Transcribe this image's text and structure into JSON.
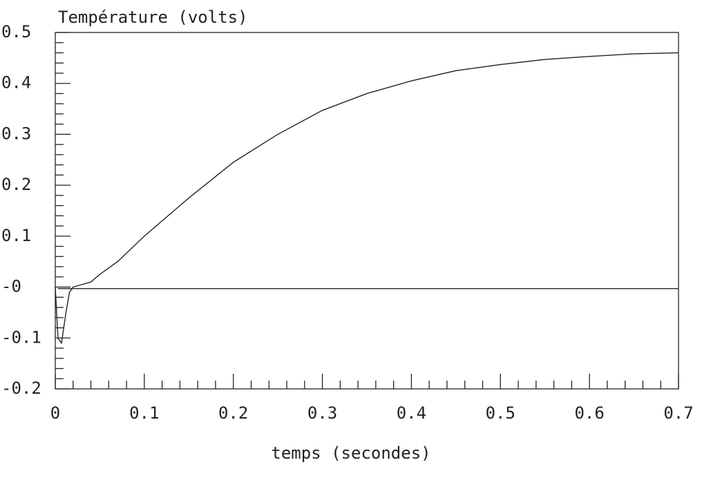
{
  "chart_data": {
    "type": "line",
    "title": "Température (volts)",
    "x_label": "temps (secondes)",
    "x": [
      0,
      0.003,
      0.007,
      0.012,
      0.016,
      0.02,
      0.03,
      0.04,
      0.05,
      0.07,
      0.1,
      0.15,
      0.2,
      0.25,
      0.3,
      0.35,
      0.4,
      0.45,
      0.5,
      0.55,
      0.6,
      0.65,
      0.7
    ],
    "series": [
      {
        "color": "#222222",
        "values": [
          0,
          -0.1,
          -0.11,
          -0.05,
          -0.01,
          0.0,
          0.005,
          0.01,
          0.025,
          0.05,
          0.1,
          0.175,
          0.245,
          0.3,
          0.347,
          0.38,
          0.405,
          0.425,
          0.437,
          0.447,
          0.453,
          0.458,
          0.46
        ]
      },
      {
        "color": "#222222",
        "values": [
          null,
          -0.003,
          -0.003,
          -0.003,
          -0.003,
          -0.003,
          -0.003,
          -0.003,
          -0.003,
          -0.003,
          -0.003,
          -0.003,
          -0.003,
          -0.003,
          -0.003,
          -0.003,
          -0.003,
          -0.003,
          -0.003,
          -0.003,
          -0.003,
          -0.003,
          -0.003
        ]
      }
    ],
    "xlim": [
      0,
      0.7
    ],
    "xticks": [
      0,
      0.1,
      0.2,
      0.3,
      0.4,
      0.5,
      0.6,
      0.7
    ],
    "ylim": [
      -0.2,
      0.5
    ],
    "yticks": [
      0.5,
      0.4,
      0.3,
      0.2,
      0.1,
      {
        "value": 0,
        "label": "-0"
      },
      -0.1,
      -0.2
    ],
    "minor_ticks": true,
    "grid": false
  }
}
